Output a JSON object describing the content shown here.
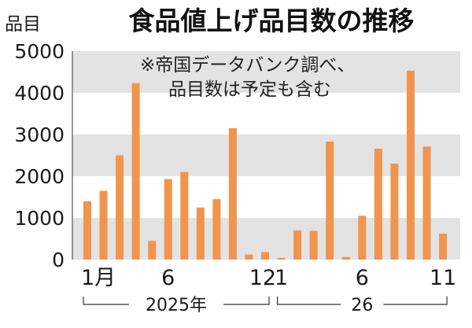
{
  "chart_data": {
    "type": "bar",
    "title": "食品値上げ品目数の推移",
    "ylabel": "品目",
    "ylim": [
      0,
      5000
    ],
    "yticks": [
      "0",
      "1000",
      "2000",
      "3000",
      "4000",
      "5000"
    ],
    "grid": "alternating horizontal bands",
    "note": [
      "※帝国データバンク調べ、",
      "品目数は予定も含む"
    ],
    "categories": [
      "2025-01",
      "2025-02",
      "2025-03",
      "2025-04",
      "2025-05",
      "2025-06",
      "2025-07",
      "2025-08",
      "2025-09",
      "2025-10",
      "2025-11",
      "2025-12",
      "2026-01",
      "2026-02",
      "2026-03",
      "2026-04",
      "2026-05",
      "2026-06",
      "2026-07",
      "2026-08",
      "2026-09",
      "2026-10",
      "2026-11"
    ],
    "x_tick_labels": [
      {
        "category": "2025-01",
        "text": "1月"
      },
      {
        "category": "2025-06",
        "text": "6"
      },
      {
        "category": "2025-12",
        "text": "12"
      },
      {
        "category": "2026-01",
        "text": "1"
      },
      {
        "category": "2026-06",
        "text": "6"
      },
      {
        "category": "2026-11",
        "text": "11"
      }
    ],
    "year_groups": [
      {
        "label": "2025年",
        "from": "2025-01",
        "to": "2025-12"
      },
      {
        "label": "26",
        "from": "2026-01",
        "to": "2026-11"
      }
    ],
    "series": [
      {
        "values": [
          1400,
          1650,
          2500,
          4230,
          450,
          1930,
          2100,
          1250,
          1450,
          3150,
          120,
          180,
          40,
          700,
          690,
          2830,
          60,
          1050,
          2660,
          2300,
          4530,
          2710,
          620
        ]
      }
    ],
    "colors": {
      "bar": "#f0944e",
      "band": "#e3e3e3",
      "text": "#1a1a1a"
    }
  }
}
